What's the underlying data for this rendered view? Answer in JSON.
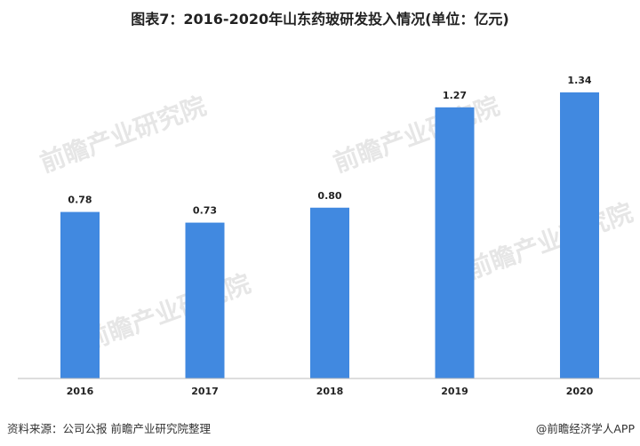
{
  "chart_data": {
    "type": "bar",
    "title": "图表7：2016-2020年山东药玻研发投入情况(单位：亿元)",
    "categories": [
      "2016",
      "2017",
      "2018",
      "2019",
      "2020"
    ],
    "values": [
      0.78,
      0.73,
      0.8,
      1.27,
      1.34
    ],
    "data_labels": [
      "0.78",
      "0.73",
      "0.80",
      "1.27",
      "1.34"
    ],
    "xlabel": "",
    "ylabel": "",
    "ylim": [
      0,
      1.34
    ],
    "grid": false,
    "bar_color": "#4189e0"
  },
  "footer": {
    "source": "资料来源：公司公报 前瞻产业研究院整理",
    "credit": "@前瞻经济学人APP"
  },
  "watermark": "前瞻产业研究院"
}
